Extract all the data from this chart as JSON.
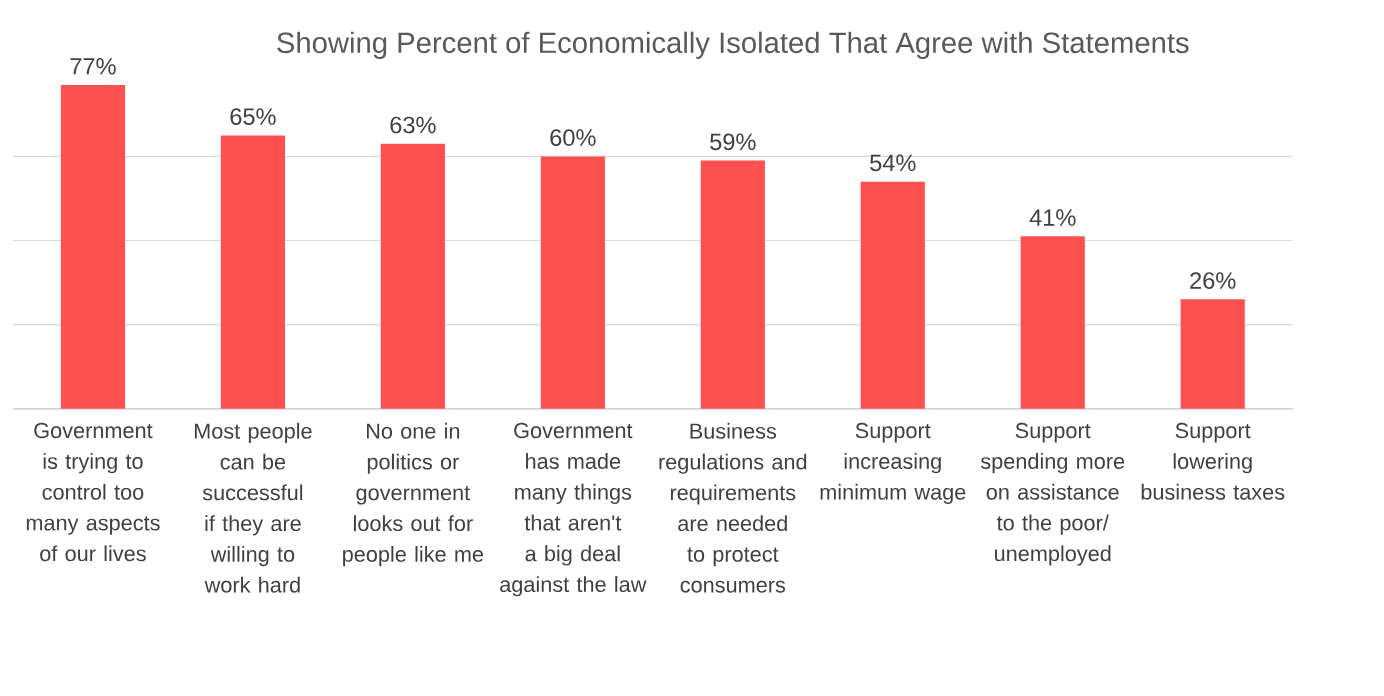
{
  "chart_data": {
    "type": "bar",
    "title": "Showing Percent of Economically Isolated That Agree with Statements",
    "categories": [
      "Government is trying to control too many aspects of our lives",
      "Most people can be successful if they are willing to work hard",
      "No one in politics or government looks out for people like me",
      "Government has made many things that aren't a big deal against the law",
      "Business regulations and requirements are needed to protect consumers",
      "Support increasing minimum wage",
      "Support spending more on assistance to the poor/ unemployed",
      "Support lowering business taxes"
    ],
    "values": [
      77,
      65,
      63,
      60,
      59,
      54,
      41,
      26
    ],
    "value_labels": [
      "77%",
      "65%",
      "63%",
      "60%",
      "59%",
      "54%",
      "41%",
      "26%"
    ],
    "color": "#ff5050",
    "tick_labels": "x",
    "grid": "y"
  }
}
